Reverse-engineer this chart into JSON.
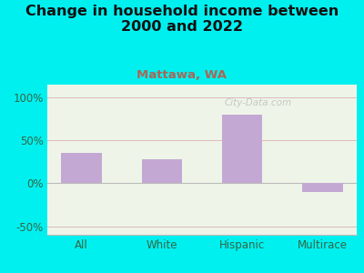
{
  "title": "Change in household income between\n2000 and 2022",
  "subtitle": "Mattawa, WA",
  "categories": [
    "All",
    "White",
    "Hispanic",
    "Multirace"
  ],
  "values": [
    35,
    28,
    80,
    -10
  ],
  "bar_color": "#c4a8d4",
  "title_fontsize": 11.5,
  "title_color": "#111111",
  "subtitle_fontsize": 9.5,
  "subtitle_color": "#aa6655",
  "tick_label_color": "#336644",
  "background_color": "#00f0f0",
  "plot_bg_color": "#eef5e8",
  "ylim": [
    -60,
    115
  ],
  "yticks": [
    -50,
    0,
    50,
    100
  ],
  "ytick_labels": [
    "-50%",
    "0%",
    "50%",
    "100%"
  ],
  "grid_color": "#ddbbbb",
  "watermark": "City-Data.com",
  "watermark_color": "#aaaaaa"
}
